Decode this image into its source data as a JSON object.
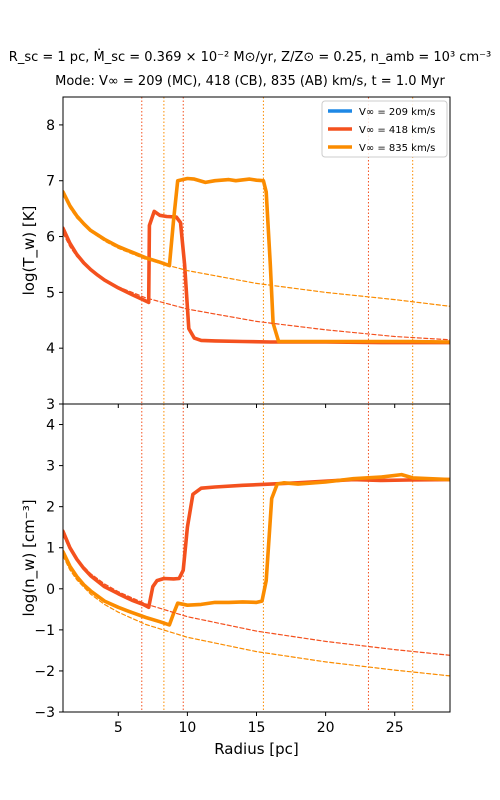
{
  "figure": {
    "title_line1": "R_sc = 1 pc, Ṁ_sc = 0.369 × 10⁻² M⊙/yr, Z/Z⊙ = 0.25, n_amb = 10³ cm⁻³",
    "title_line2": "Mode: V∞ = 209 (MC), 418 (CB), 835 (AB) km/s, t = 1.0 Myr"
  },
  "chart_data": [
    {
      "type": "line",
      "panel": "top",
      "xlabel": "",
      "ylabel": "log(T_w) [K]",
      "xlim": [
        1,
        29
      ],
      "ylim": [
        3,
        8.5
      ],
      "yticks": [
        3,
        4,
        5,
        6,
        7,
        8
      ],
      "xticks": [
        5,
        10,
        15,
        20,
        25
      ],
      "legend": {
        "placement": "top-right",
        "entries": [
          {
            "label": "V∞ = 209 km/s",
            "color": "#1e88e5"
          },
          {
            "label": "V∞ = 418 km/s",
            "color": "#f4511e"
          },
          {
            "label": "V∞ = 835 km/s",
            "color": "#fb8c00"
          }
        ]
      },
      "series": [
        {
          "name": "V∞ = 209 km/s",
          "color": "#1e88e5",
          "style": "solid",
          "points": []
        },
        {
          "name": "V∞ = 418 km/s",
          "color": "#f4511e",
          "style": "solid",
          "points": [
            [
              1.0,
              6.15
            ],
            [
              1.5,
              5.88
            ],
            [
              2.0,
              5.68
            ],
            [
              2.5,
              5.53
            ],
            [
              3.0,
              5.41
            ],
            [
              3.5,
              5.31
            ],
            [
              4.0,
              5.22
            ],
            [
              5.0,
              5.08
            ],
            [
              6.0,
              4.96
            ],
            [
              6.7,
              4.88
            ],
            [
              7.2,
              4.82
            ],
            [
              7.25,
              6.2
            ],
            [
              7.6,
              6.45
            ],
            [
              8.0,
              6.38
            ],
            [
              8.5,
              6.36
            ],
            [
              9.2,
              6.35
            ],
            [
              9.5,
              6.25
            ],
            [
              9.8,
              5.5
            ],
            [
              10.1,
              4.35
            ],
            [
              10.5,
              4.18
            ],
            [
              11.0,
              4.14
            ],
            [
              12.0,
              4.13
            ],
            [
              14.0,
              4.12
            ],
            [
              16.0,
              4.11
            ],
            [
              20.0,
              4.11
            ],
            [
              24.0,
              4.1
            ],
            [
              29.0,
              4.1
            ]
          ]
        },
        {
          "name": "V∞ = 835 km/s",
          "color": "#fb8c00",
          "style": "solid",
          "points": [
            [
              1.0,
              6.8
            ],
            [
              1.5,
              6.55
            ],
            [
              2.0,
              6.37
            ],
            [
              2.5,
              6.23
            ],
            [
              3.0,
              6.11
            ],
            [
              4.0,
              5.95
            ],
            [
              5.0,
              5.82
            ],
            [
              6.0,
              5.72
            ],
            [
              7.0,
              5.62
            ],
            [
              8.0,
              5.54
            ],
            [
              8.7,
              5.48
            ],
            [
              9.0,
              6.3
            ],
            [
              9.3,
              7.0
            ],
            [
              10.0,
              7.04
            ],
            [
              10.5,
              7.03
            ],
            [
              11.3,
              6.97
            ],
            [
              12.0,
              7.0
            ],
            [
              13.0,
              7.02
            ],
            [
              13.5,
              7.0
            ],
            [
              14.5,
              7.03
            ],
            [
              15.0,
              7.01
            ],
            [
              15.5,
              7.0
            ],
            [
              15.7,
              6.8
            ],
            [
              16.0,
              5.5
            ],
            [
              16.2,
              4.45
            ],
            [
              16.6,
              4.12
            ],
            [
              18.0,
              4.12
            ],
            [
              22.0,
              4.12
            ],
            [
              26.0,
              4.12
            ],
            [
              29.0,
              4.11
            ]
          ]
        },
        {
          "name": "",
          "color": "#f4511e",
          "style": "dashed",
          "points": [
            [
              1.0,
              6.06
            ],
            [
              1.5,
              5.82
            ],
            [
              2.0,
              5.64
            ],
            [
              3.0,
              5.4
            ],
            [
              4.0,
              5.23
            ],
            [
              5.0,
              5.1
            ],
            [
              7.0,
              4.9
            ],
            [
              10.0,
              4.7
            ],
            [
              15.0,
              4.48
            ],
            [
              20.0,
              4.33
            ],
            [
              25.0,
              4.21
            ],
            [
              29.0,
              4.15
            ]
          ]
        },
        {
          "name": "",
          "color": "#fb8c00",
          "style": "dashed",
          "points": [
            [
              1.0,
              6.75
            ],
            [
              1.5,
              6.51
            ],
            [
              2.0,
              6.33
            ],
            [
              3.0,
              6.09
            ],
            [
              4.0,
              5.92
            ],
            [
              5.0,
              5.79
            ],
            [
              7.0,
              5.59
            ],
            [
              10.0,
              5.39
            ],
            [
              15.0,
              5.16
            ],
            [
              20.0,
              5.0
            ],
            [
              25.0,
              4.87
            ],
            [
              29.0,
              4.75
            ]
          ]
        }
      ],
      "vlines": [
        {
          "x": 6.7,
          "color": "#f4511e"
        },
        {
          "x": 8.3,
          "color": "#fb8c00"
        },
        {
          "x": 9.7,
          "color": "#f4511e"
        },
        {
          "x": 15.5,
          "color": "#fb8c00"
        },
        {
          "x": 23.1,
          "color": "#f4511e"
        },
        {
          "x": 26.3,
          "color": "#fb8c00"
        }
      ]
    },
    {
      "type": "line",
      "panel": "bottom",
      "xlabel": "Radius [pc]",
      "ylabel": "log(n_w) [cm⁻³]",
      "xlim": [
        1,
        29
      ],
      "ylim": [
        -3,
        4.5
      ],
      "yticks": [
        -3,
        -2,
        -1,
        0,
        1,
        2,
        3,
        4
      ],
      "xticks": [
        5,
        10,
        15,
        20,
        25
      ],
      "series": [
        {
          "name": "V∞ = 418 km/s",
          "color": "#f4511e",
          "style": "solid",
          "points": [
            [
              1.0,
              1.4
            ],
            [
              1.5,
              1.0
            ],
            [
              2.0,
              0.72
            ],
            [
              2.5,
              0.5
            ],
            [
              3.0,
              0.32
            ],
            [
              4.0,
              0.05
            ],
            [
              5.0,
              -0.12
            ],
            [
              6.0,
              -0.28
            ],
            [
              6.8,
              -0.38
            ],
            [
              7.2,
              -0.45
            ],
            [
              7.5,
              0.05
            ],
            [
              7.8,
              0.2
            ],
            [
              8.3,
              0.25
            ],
            [
              9.0,
              0.24
            ],
            [
              9.4,
              0.25
            ],
            [
              9.7,
              0.45
            ],
            [
              10.0,
              1.5
            ],
            [
              10.4,
              2.3
            ],
            [
              11.0,
              2.45
            ],
            [
              12.0,
              2.48
            ],
            [
              14.0,
              2.52
            ],
            [
              16.0,
              2.55
            ],
            [
              18.0,
              2.58
            ],
            [
              20.0,
              2.62
            ],
            [
              22.0,
              2.66
            ],
            [
              24.0,
              2.64
            ],
            [
              26.0,
              2.65
            ],
            [
              29.0,
              2.66
            ]
          ]
        },
        {
          "name": "V∞ = 835 km/s",
          "color": "#fb8c00",
          "style": "solid",
          "points": [
            [
              1.0,
              0.9
            ],
            [
              1.5,
              0.55
            ],
            [
              2.0,
              0.3
            ],
            [
              2.5,
              0.1
            ],
            [
              3.0,
              -0.05
            ],
            [
              4.0,
              -0.3
            ],
            [
              5.0,
              -0.45
            ],
            [
              6.0,
              -0.58
            ],
            [
              7.0,
              -0.7
            ],
            [
              8.0,
              -0.8
            ],
            [
              8.7,
              -0.88
            ],
            [
              9.0,
              -0.6
            ],
            [
              9.3,
              -0.35
            ],
            [
              10.0,
              -0.4
            ],
            [
              11.0,
              -0.38
            ],
            [
              12.0,
              -0.33
            ],
            [
              13.0,
              -0.33
            ],
            [
              14.0,
              -0.32
            ],
            [
              15.0,
              -0.33
            ],
            [
              15.4,
              -0.3
            ],
            [
              15.7,
              0.2
            ],
            [
              16.1,
              2.2
            ],
            [
              16.5,
              2.55
            ],
            [
              17.0,
              2.58
            ],
            [
              18.0,
              2.55
            ],
            [
              20.0,
              2.6
            ],
            [
              22.0,
              2.68
            ],
            [
              24.0,
              2.72
            ],
            [
              25.5,
              2.78
            ],
            [
              26.3,
              2.7
            ],
            [
              29.0,
              2.66
            ]
          ]
        },
        {
          "name": "",
          "color": "#f4511e",
          "style": "dashed",
          "points": [
            [
              1.0,
              1.3
            ],
            [
              1.5,
              0.96
            ],
            [
              2.0,
              0.72
            ],
            [
              3.0,
              0.37
            ],
            [
              4.0,
              0.12
            ],
            [
              5.0,
              -0.07
            ],
            [
              7.0,
              -0.37
            ],
            [
              10.0,
              -0.68
            ],
            [
              15.0,
              -1.03
            ],
            [
              20.0,
              -1.28
            ],
            [
              25.0,
              -1.48
            ],
            [
              29.0,
              -1.62
            ]
          ]
        },
        {
          "name": "",
          "color": "#fb8c00",
          "style": "dashed",
          "points": [
            [
              1.0,
              0.8
            ],
            [
              1.5,
              0.46
            ],
            [
              2.0,
              0.22
            ],
            [
              3.0,
              -0.13
            ],
            [
              4.0,
              -0.38
            ],
            [
              5.0,
              -0.57
            ],
            [
              7.0,
              -0.87
            ],
            [
              10.0,
              -1.18
            ],
            [
              15.0,
              -1.53
            ],
            [
              20.0,
              -1.78
            ],
            [
              25.0,
              -1.98
            ],
            [
              29.0,
              -2.12
            ]
          ]
        }
      ],
      "vlines": [
        {
          "x": 6.7,
          "color": "#f4511e"
        },
        {
          "x": 8.3,
          "color": "#fb8c00"
        },
        {
          "x": 9.7,
          "color": "#f4511e"
        },
        {
          "x": 15.5,
          "color": "#fb8c00"
        },
        {
          "x": 23.1,
          "color": "#f4511e"
        },
        {
          "x": 26.3,
          "color": "#fb8c00"
        }
      ]
    }
  ]
}
